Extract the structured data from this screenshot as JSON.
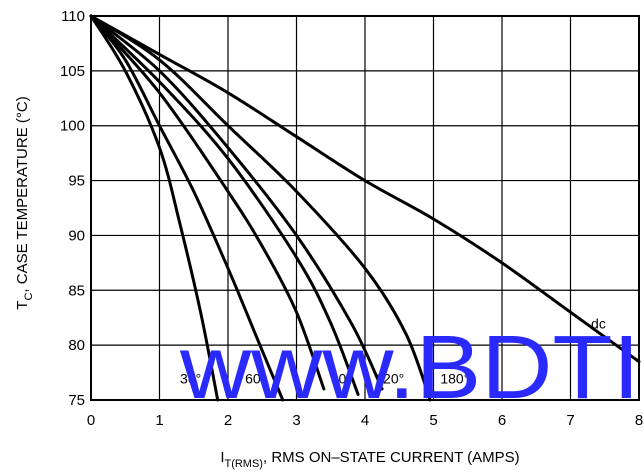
{
  "chart_data": {
    "type": "line",
    "title": "",
    "xlabel": {
      "prefix": "I",
      "sub": "T(RMS)",
      "rest": ", RMS ON–STATE CURRENT (AMPS)"
    },
    "ylabel": {
      "prefix": "T",
      "sub": "C",
      "rest": ", CASE TEMPERATURE (°C)"
    },
    "xlim": [
      0,
      8
    ],
    "ylim": [
      75,
      110
    ],
    "xticks": [
      0,
      1,
      2,
      3,
      4,
      5,
      6,
      7,
      8
    ],
    "yticks": [
      75,
      80,
      85,
      90,
      95,
      100,
      105,
      110
    ],
    "grid": true,
    "series": [
      {
        "name": "30°",
        "x": [
          0,
          0.5,
          1.0,
          1.3,
          1.6,
          1.85
        ],
        "y": [
          110,
          105,
          98,
          91,
          83,
          75
        ]
      },
      {
        "name": "60°",
        "x": [
          0,
          0.5,
          1.0,
          1.5,
          2.0,
          2.4,
          2.8
        ],
        "y": [
          110,
          106,
          100,
          94,
          87,
          81,
          75
        ]
      },
      {
        "name": "90°",
        "x": [
          0,
          1.0,
          2.0,
          2.5,
          3.0,
          3.4
        ],
        "y": [
          110,
          103,
          94,
          89,
          83,
          76
        ]
      },
      {
        "name": "",
        "x": [
          0,
          1.0,
          2.0,
          3.0,
          3.5,
          3.9
        ],
        "y": [
          110,
          104,
          97,
          88,
          82,
          75.5
        ]
      },
      {
        "name": "120°",
        "x": [
          0,
          1.0,
          2.0,
          3.0,
          3.8,
          4.25
        ],
        "y": [
          110,
          105,
          98,
          90,
          82,
          76
        ]
      },
      {
        "name": "180°",
        "x": [
          0,
          1.0,
          2.0,
          3.0,
          4.0,
          4.6,
          4.95
        ],
        "y": [
          110,
          106,
          100,
          94,
          87,
          81,
          75
        ]
      },
      {
        "name": "dc",
        "x": [
          0,
          1.0,
          2.0,
          3.0,
          4.0,
          5.0,
          6.0,
          7.0,
          8.0
        ],
        "y": [
          110,
          106.5,
          103,
          99,
          95,
          91.5,
          87.5,
          83,
          78.5
        ]
      }
    ],
    "annotations": [
      {
        "text": "30°",
        "x": 1.3,
        "y": 76.5
      },
      {
        "text": "60°",
        "x": 2.25,
        "y": 76.5
      },
      {
        "text": "90°",
        "x": 3.5,
        "y": 76.5
      },
      {
        "text": "120°",
        "x": 4.15,
        "y": 76.5
      },
      {
        "text": "180°",
        "x": 5.1,
        "y": 76.5
      },
      {
        "text": "dc",
        "x": 7.3,
        "y": 81.5
      }
    ]
  },
  "watermark": "www.BDTI"
}
